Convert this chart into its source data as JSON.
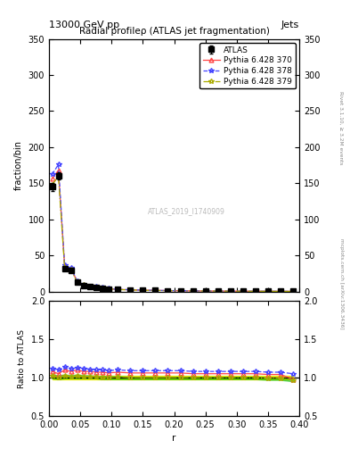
{
  "title": "Radial profileρ (ATLAS jet fragmentation)",
  "top_left_label": "13000 GeV pp",
  "top_right_label": "Jets",
  "right_label_top": "Rivet 3.1.10, ≥ 3.2M events",
  "right_label_bottom": "mcplots.cern.ch [arXiv:1306.3436]",
  "watermark": "ATLAS_2019_I1740909",
  "ylabel_main": "fraction/bin",
  "ylabel_ratio": "Ratio to ATLAS",
  "xlabel": "r",
  "xlim": [
    0,
    0.4
  ],
  "ylim_main": [
    0,
    350
  ],
  "ylim_ratio": [
    0.5,
    2.0
  ],
  "yticks_main": [
    0,
    50,
    100,
    150,
    200,
    250,
    300,
    350
  ],
  "yticks_ratio": [
    0.5,
    1.0,
    1.5,
    2.0
  ],
  "r_values": [
    0.005,
    0.015,
    0.025,
    0.035,
    0.045,
    0.055,
    0.065,
    0.075,
    0.085,
    0.095,
    0.11,
    0.13,
    0.15,
    0.17,
    0.19,
    0.21,
    0.23,
    0.25,
    0.27,
    0.29,
    0.31,
    0.33,
    0.35,
    0.37,
    0.39
  ],
  "atlas_values": [
    145,
    160,
    32,
    30,
    13,
    9,
    7,
    6,
    5,
    4,
    3,
    2.5,
    2,
    1.8,
    1.5,
    1.3,
    1.1,
    1.0,
    0.9,
    0.8,
    0.7,
    0.65,
    0.6,
    0.55,
    0.5
  ],
  "atlas_errors": [
    5,
    5,
    1.5,
    1.5,
    0.8,
    0.6,
    0.5,
    0.4,
    0.3,
    0.3,
    0.2,
    0.2,
    0.15,
    0.15,
    0.12,
    0.1,
    0.1,
    0.08,
    0.08,
    0.07,
    0.06,
    0.06,
    0.05,
    0.05,
    0.05
  ],
  "pythia370_ratio": [
    1.08,
    1.05,
    1.1,
    1.08,
    1.1,
    1.08,
    1.08,
    1.07,
    1.07,
    1.06,
    1.07,
    1.06,
    1.06,
    1.06,
    1.06,
    1.06,
    1.05,
    1.05,
    1.05,
    1.05,
    1.05,
    1.05,
    1.04,
    1.04,
    0.98
  ],
  "pythia378_ratio": [
    1.12,
    1.1,
    1.14,
    1.12,
    1.13,
    1.12,
    1.11,
    1.1,
    1.1,
    1.09,
    1.1,
    1.09,
    1.09,
    1.09,
    1.09,
    1.09,
    1.08,
    1.08,
    1.08,
    1.08,
    1.08,
    1.08,
    1.07,
    1.07,
    1.05
  ],
  "pythia379_ratio": [
    1.02,
    1.0,
    1.02,
    1.01,
    1.02,
    1.01,
    1.01,
    1.01,
    1.0,
    1.0,
    1.01,
    1.0,
    1.0,
    1.0,
    1.0,
    1.0,
    1.0,
    1.0,
    1.0,
    1.0,
    1.0,
    1.0,
    0.99,
    0.99,
    0.97
  ],
  "pythia379_band_upper": [
    1.04,
    1.03,
    1.04,
    1.03,
    1.04,
    1.03,
    1.03,
    1.02,
    1.02,
    1.02,
    1.02,
    1.01,
    1.01,
    1.01,
    1.01,
    1.01,
    1.01,
    1.01,
    1.01,
    1.01,
    1.01,
    1.01,
    1.0,
    1.0,
    1.0
  ],
  "pythia379_band_lower": [
    0.99,
    0.98,
    0.99,
    0.99,
    0.99,
    0.99,
    0.99,
    0.99,
    0.98,
    0.98,
    0.98,
    0.98,
    0.98,
    0.98,
    0.98,
    0.98,
    0.98,
    0.98,
    0.98,
    0.98,
    0.98,
    0.98,
    0.97,
    0.97,
    0.95
  ],
  "atlas_band_upper": [
    1.02,
    1.02,
    1.02,
    1.02,
    1.02,
    1.02,
    1.02,
    1.02,
    1.02,
    1.02,
    1.02,
    1.02,
    1.02,
    1.02,
    1.02,
    1.02,
    1.02,
    1.02,
    1.02,
    1.02,
    1.02,
    1.02,
    1.02,
    1.02,
    1.02
  ],
  "atlas_band_lower": [
    0.98,
    0.98,
    0.98,
    0.98,
    0.98,
    0.98,
    0.98,
    0.98,
    0.98,
    0.98,
    0.98,
    0.98,
    0.98,
    0.98,
    0.98,
    0.98,
    0.98,
    0.98,
    0.98,
    0.98,
    0.98,
    0.98,
    0.98,
    0.98,
    0.98
  ],
  "color_atlas": "#000000",
  "color_370": "#ff4444",
  "color_378": "#4444ff",
  "color_379": "#aaaa00",
  "label_atlas": "ATLAS",
  "label_370": "Pythia 6.428 370",
  "label_378": "Pythia 6.428 378",
  "label_379": "Pythia 6.428 379",
  "band_color_green": "#00bb00",
  "band_color_yellow": "#eeee00"
}
